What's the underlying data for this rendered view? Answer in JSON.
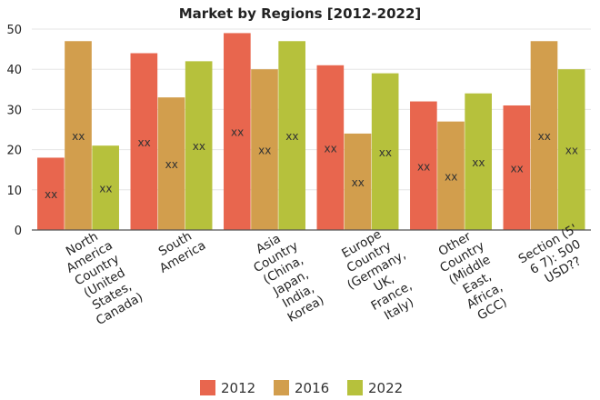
{
  "chart_data": {
    "type": "bar",
    "title": "Market by Regions [2012-2022]",
    "categories": [
      [
        "North",
        "America",
        "Country",
        "(United",
        "States,",
        "Canada)"
      ],
      [
        "South",
        "America"
      ],
      [
        "Asia",
        "Country",
        "(China,",
        "Japan,",
        "India,",
        "Korea)"
      ],
      [
        "Europe",
        "Country",
        "(Germany,",
        "UK,",
        "France,",
        "Italy)"
      ],
      [
        "Other",
        "Country",
        "(Middle",
        "East,",
        "Africa,",
        "GCC)"
      ],
      [
        "Section (5'",
        "6 7): 500",
        "USD??"
      ]
    ],
    "series": [
      {
        "name": "2012",
        "color": "#e8664e",
        "values": [
          18,
          44,
          49,
          41,
          32,
          31
        ]
      },
      {
        "name": "2016",
        "color": "#d29e4d",
        "values": [
          47,
          33,
          40,
          24,
          27,
          47
        ]
      },
      {
        "name": "2022",
        "color": "#b6c13c",
        "values": [
          21,
          42,
          47,
          39,
          34,
          40
        ]
      }
    ],
    "data_label": "xx",
    "yticks": [
      "0",
      "10",
      "20",
      "30",
      "40",
      "50"
    ],
    "ylim": [
      0,
      50
    ],
    "grid": true,
    "legend": "bottom-center"
  }
}
